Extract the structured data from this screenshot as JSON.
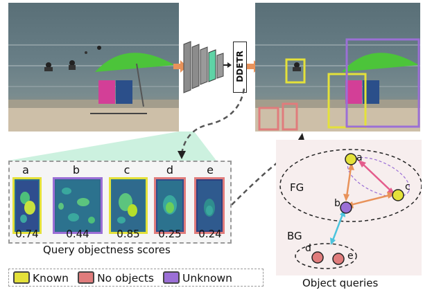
{
  "detector_label": "DDETR",
  "queries": [
    {
      "letter": "a",
      "score": "0.74",
      "status": "known"
    },
    {
      "letter": "b",
      "score": "0.44",
      "status": "unknown"
    },
    {
      "letter": "c",
      "score": "0.85",
      "status": "known"
    },
    {
      "letter": "d",
      "score": "0.25",
      "status": "no_objects"
    },
    {
      "letter": "e",
      "score": "0.24",
      "status": "no_objects"
    }
  ],
  "scores_caption": "Query objectness scores",
  "legend": {
    "known": "Known",
    "no_objects": "No objects",
    "unknown": "Unknown"
  },
  "query_space": {
    "fg_label": "FG",
    "bg_label": "BG",
    "caption": "Object queries"
  },
  "colors": {
    "known": "#e4e13a",
    "no_objects": "#e07c7c",
    "unknown": "#9b6fd6",
    "arrow_orange": "#e8925a",
    "arrow_pink": "#e45c8c",
    "arrow_cyan": "#4cc4dd",
    "mint": "#c6f0dc"
  }
}
